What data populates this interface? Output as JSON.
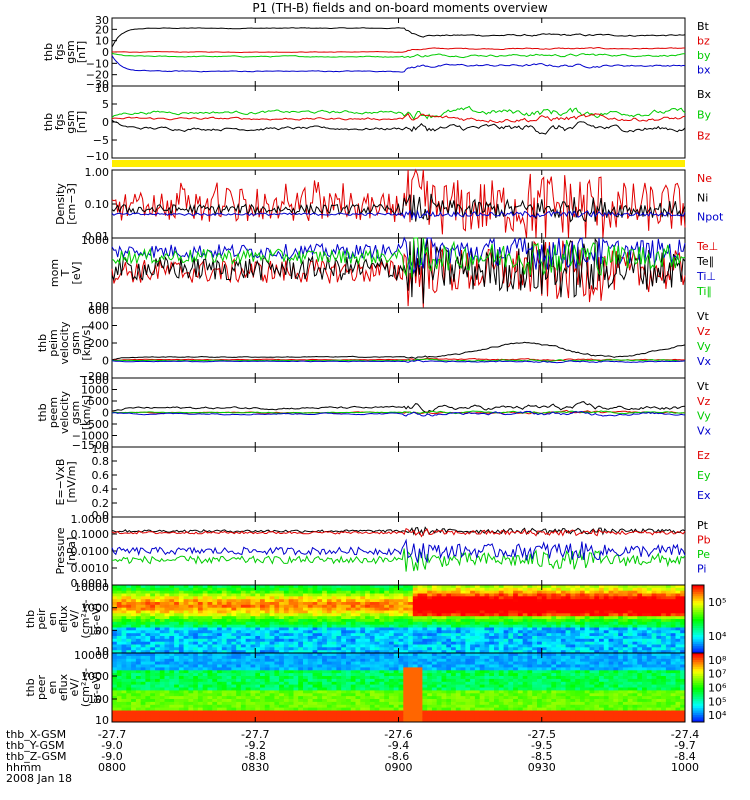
{
  "title": "P1 (TH-B) fields and on-board moments overview",
  "colors": {
    "black": "#000000",
    "red": "#e00000",
    "green": "#00cc00",
    "blue": "#0000cc",
    "yellow": "#ffee00"
  },
  "chart_data": {
    "type": "line",
    "x_ticks": [
      "0800",
      "0830",
      "0900",
      "0930",
      "1000"
    ],
    "footer": {
      "rows": [
        {
          "label": "thb_X-GSM",
          "values": [
            "-27.7",
            "-27.7",
            "-27.6",
            "-27.5",
            "-27.4"
          ]
        },
        {
          "label": "thb_Y-GSM",
          "values": [
            "-9.0",
            "-9.2",
            "-9.4",
            "-9.5",
            "-9.7"
          ]
        },
        {
          "label": "thb_Z-GSM",
          "values": [
            "-9.0",
            "-8.8",
            "-8.6",
            "-8.5",
            "-8.4"
          ]
        },
        {
          "label": "hhmm",
          "values": [
            "0800",
            "0830",
            "0900",
            "0930",
            "1000"
          ]
        }
      ],
      "date": "2008 Jan 18"
    },
    "panels": [
      {
        "id": "fgs",
        "ylabel": [
          "thb",
          "fgs",
          "gsm",
          "[nT]"
        ],
        "yticks": [
          "30",
          "20",
          "10",
          "0",
          "−10",
          "−20",
          "−30"
        ],
        "scale": "linear",
        "ylim": [
          -30,
          30
        ],
        "series": [
          {
            "name": "Bt",
            "color": "black",
            "level": 21,
            "amp": 1.5
          },
          {
            "name": "bz",
            "color": "red",
            "level": 0,
            "amp": 1
          },
          {
            "name": "by",
            "color": "green",
            "level": -4,
            "amp": 2
          },
          {
            "name": "bx",
            "color": "blue",
            "level": -17,
            "amp": 2
          }
        ]
      },
      {
        "id": "fgs2",
        "ylabel": [
          "thb",
          "fgs",
          "gsm",
          "[nT]"
        ],
        "yticks": [
          "10",
          "5",
          "0",
          "−5",
          "−10"
        ],
        "scale": "linear",
        "ylim": [
          -12,
          10
        ],
        "series": [
          {
            "name": "Bx",
            "color": "black",
            "level": -3,
            "amp": 2
          },
          {
            "name": "By",
            "color": "green",
            "level": 2,
            "amp": 2
          },
          {
            "name": "Bz",
            "color": "red",
            "level": 0,
            "amp": 1.5
          }
        ]
      },
      {
        "id": "density",
        "ylabel": [
          "Density",
          "[cm−3]"
        ],
        "yticks": [
          "1.00",
          "0.10",
          "0.01"
        ],
        "scale": "log",
        "ylim": [
          0.01,
          1.0
        ],
        "series": [
          {
            "name": "Ne",
            "color": "red",
            "level": 0.08,
            "amp": 0.6
          },
          {
            "name": "Ni",
            "color": "black",
            "level": 0.07,
            "amp": 0.2
          },
          {
            "name": "Npot",
            "color": "blue",
            "level": 0.05,
            "amp": 0.05
          }
        ]
      },
      {
        "id": "temp",
        "ylabel": [
          "mom",
          "T",
          "[eV]"
        ],
        "yticks": [
          "1000",
          "100"
        ],
        "scale": "log",
        "ylim": [
          40,
          5000
        ],
        "series": [
          {
            "name": "Te⊥",
            "color": "red",
            "level": 500,
            "amp": 0.5
          },
          {
            "name": "Te∥",
            "color": "black",
            "level": 600,
            "amp": 0.5
          },
          {
            "name": "Ti⊥",
            "color": "blue",
            "level": 2000,
            "amp": 0.3
          },
          {
            "name": "Ti∥",
            "color": "green",
            "level": 1400,
            "amp": 0.3
          }
        ]
      },
      {
        "id": "vi",
        "ylabel": [
          "thb",
          "peim",
          "velocity",
          "gsm",
          "[km/s]"
        ],
        "yticks": [
          "600",
          "400",
          "200",
          "0",
          "−200"
        ],
        "scale": "linear",
        "ylim": [
          -200,
          600
        ],
        "series": [
          {
            "name": "Vt",
            "color": "black",
            "level": 40,
            "amp": 20
          },
          {
            "name": "Vz",
            "color": "red",
            "level": 10,
            "amp": 15
          },
          {
            "name": "Vy",
            "color": "green",
            "level": 0,
            "amp": 15
          },
          {
            "name": "Vx",
            "color": "blue",
            "level": -10,
            "amp": 15
          }
        ]
      },
      {
        "id": "ve",
        "ylabel": [
          "thb",
          "peem",
          "velocity",
          "gsm",
          "[km/s]"
        ],
        "yticks": [
          "1500",
          "1000",
          "500",
          "0",
          "−500",
          "−1000",
          "−1500"
        ],
        "scale": "linear",
        "ylim": [
          -1500,
          1500
        ],
        "series": [
          {
            "name": "Vt",
            "color": "black",
            "level": 200,
            "amp": 200
          },
          {
            "name": "Vz",
            "color": "red",
            "level": 0,
            "amp": 80
          },
          {
            "name": "Vy",
            "color": "green",
            "level": 0,
            "amp": 80
          },
          {
            "name": "Vx",
            "color": "blue",
            "level": -50,
            "amp": 120
          }
        ]
      },
      {
        "id": "efield",
        "ylabel": [
          "E=−VxB",
          "[mV/m]"
        ],
        "yticks": [
          "1.0",
          "0.8",
          "0.6",
          "0.4",
          "0.2",
          "0.0"
        ],
        "scale": "linear",
        "ylim": [
          0,
          1
        ],
        "series": [
          {
            "name": "Ez",
            "color": "red"
          },
          {
            "name": "Ey",
            "color": "green"
          },
          {
            "name": "Ex",
            "color": "blue"
          }
        ]
      },
      {
        "id": "pressure",
        "ylabel": [
          "Pressure",
          "[nPa]"
        ],
        "yticks": [
          "1.0000",
          "0.1000",
          "0.0100",
          "0.0010",
          "0.0001"
        ],
        "scale": "log",
        "ylim": [
          0.0001,
          1
        ],
        "series": [
          {
            "name": "Pt",
            "color": "black",
            "level": 0.15,
            "amp": 0.1
          },
          {
            "name": "Pb",
            "color": "red",
            "level": 0.12,
            "amp": 0.1
          },
          {
            "name": "Pe",
            "color": "green",
            "level": 0.003,
            "amp": 0.3
          },
          {
            "name": "Pi",
            "color": "blue",
            "level": 0.01,
            "amp": 0.3
          }
        ]
      },
      {
        "id": "peir",
        "ylabel": [
          "thb",
          "peir",
          "en",
          "eflux",
          "eV/",
          "(cm²-s-",
          "sr-eV)"
        ],
        "yticks": [
          "10000",
          "1000",
          "100",
          "10"
        ],
        "cbar_ticks": [
          "10⁵",
          "10⁴"
        ],
        "type": "heatmap"
      },
      {
        "id": "peer",
        "ylabel": [
          "thb",
          "peer",
          "en",
          "eflux",
          "eV/",
          "(cm²-s-",
          "sr-eV)"
        ],
        "yticks": [
          "10000",
          "1000",
          "100",
          "10"
        ],
        "cbar_ticks": [
          "10⁸",
          "10⁷",
          "10⁶",
          "10⁵",
          "10⁴"
        ],
        "type": "heatmap"
      }
    ]
  }
}
